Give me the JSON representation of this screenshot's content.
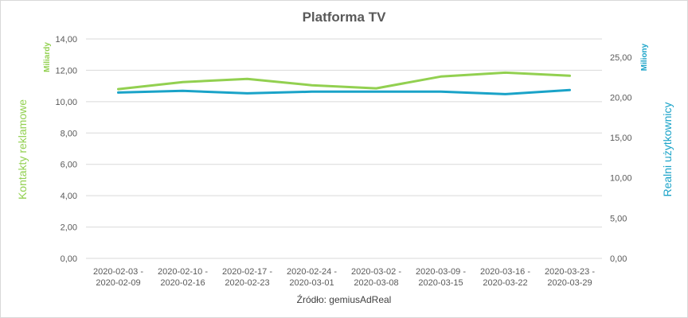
{
  "chart_data": {
    "type": "line",
    "title": "Platforma TV",
    "categories": [
      [
        "2020-02-03 -",
        "2020-02-09"
      ],
      [
        "2020-02-10 -",
        "2020-02-16"
      ],
      [
        "2020-02-17 -",
        "2020-02-23"
      ],
      [
        "2020-02-24 -",
        "2020-03-01"
      ],
      [
        "2020-03-02 -",
        "2020-03-08"
      ],
      [
        "2020-03-09 -",
        "2020-03-15"
      ],
      [
        "2020-03-16 -",
        "2020-03-22"
      ],
      [
        "2020-03-23 -",
        "2020-03-29"
      ]
    ],
    "left_axis": {
      "title": "Kontakty reklamowe",
      "unit": "Miliardy",
      "ylim": [
        0,
        14
      ],
      "ticks": [
        "0,00",
        "2,00",
        "4,00",
        "6,00",
        "8,00",
        "10,00",
        "12,00",
        "14,00"
      ],
      "color": "#92d050"
    },
    "right_axis": {
      "title": "Realni użytkownicy",
      "unit": "Miliony",
      "ylim": [
        0,
        27.25
      ],
      "ticks": [
        "0,00",
        "5,00",
        "10,00",
        "15,00",
        "20,00",
        "25,00"
      ],
      "color": "#1aa3c8"
    },
    "series": [
      {
        "axis": "left",
        "color": "#92d050",
        "values": [
          10.8,
          11.25,
          11.45,
          11.05,
          10.85,
          11.6,
          11.85,
          11.65
        ]
      },
      {
        "axis": "right",
        "color": "#1aa3c8",
        "values": [
          20.6,
          20.8,
          20.5,
          20.7,
          20.7,
          20.7,
          20.4,
          20.9
        ]
      }
    ],
    "grid": true,
    "source": "Źródło: gemiusAdReal"
  }
}
